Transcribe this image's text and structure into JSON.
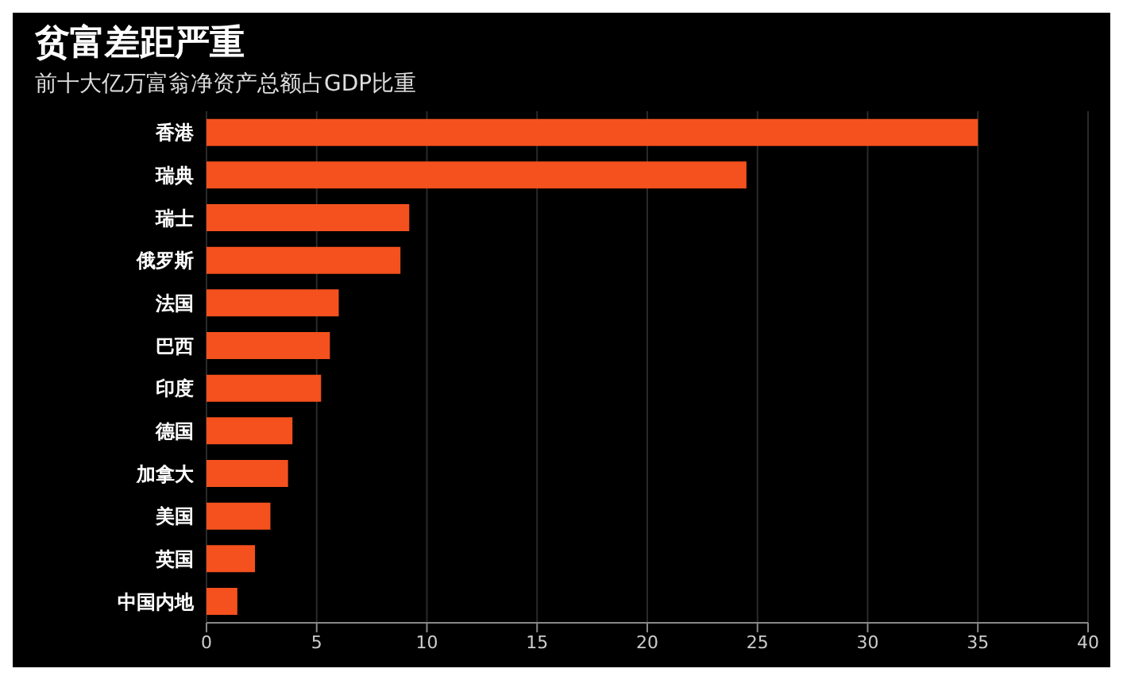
{
  "chart_data": {
    "type": "bar",
    "orientation": "horizontal",
    "title": "贫富差距严重",
    "subtitle": "前十大亿万富翁净资产总额占GDP比重",
    "categories": [
      "香港",
      "瑞典",
      "瑞士",
      "俄罗斯",
      "法国",
      "巴西",
      "印度",
      "德国",
      "加拿大",
      "美国",
      "英国",
      "中国内地"
    ],
    "values": [
      35,
      24.5,
      9.2,
      8.8,
      6,
      5.6,
      5.2,
      3.9,
      3.7,
      2.9,
      2.2,
      1.4
    ],
    "color": "#f4511e",
    "xlim": [
      0,
      40
    ],
    "xticks": [
      0,
      5,
      10,
      15,
      20,
      25,
      30,
      35,
      40
    ],
    "grid": "x"
  }
}
